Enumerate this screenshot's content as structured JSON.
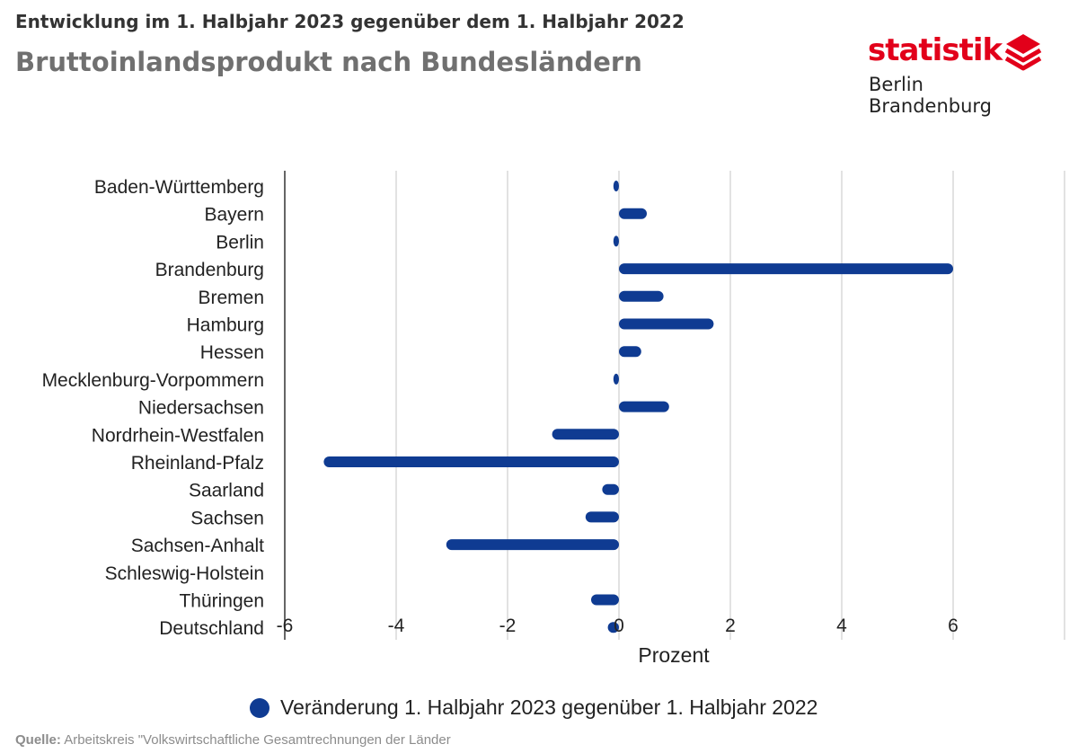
{
  "header": {
    "subtitle": "Entwicklung im 1. Halbjahr 2023 gegenüber dem 1. Halbjahr 2022",
    "title": "Bruttoinlandsprodukt nach Bundesländern"
  },
  "logo": {
    "word": "statistik",
    "sub": "Berlin Brandenburg",
    "accent_color": "#e2001a"
  },
  "colors": {
    "bar": "#0f3b92",
    "grid": "#d9d9d9",
    "axis": "#333333"
  },
  "chart_data": {
    "type": "bar",
    "orientation": "horizontal",
    "categories": [
      "Baden-Württemberg",
      "Bayern",
      "Berlin",
      "Brandenburg",
      "Bremen",
      "Hamburg",
      "Hessen",
      "Mecklenburg-Vorpommern",
      "Niedersachsen",
      "Nordrhein-Westfalen",
      "Rheinland-Pfalz",
      "Saarland",
      "Sachsen",
      "Sachsen-Anhalt",
      "Schleswig-Holstein",
      "Thüringen",
      "Deutschland"
    ],
    "series": [
      {
        "name": "Veränderung 1. Halbjahr 2023 gegenüber 1. Halbjahr 2022",
        "values": [
          -0.1,
          0.5,
          -0.1,
          6.0,
          0.8,
          1.7,
          0.4,
          -0.1,
          0.9,
          -1.2,
          -5.3,
          -0.3,
          -0.6,
          -3.1,
          0.0,
          -0.5,
          -0.2
        ]
      }
    ],
    "xlabel": "Prozent",
    "xlim": [
      -6,
      8
    ],
    "xticks": [
      -6,
      -4,
      -2,
      0,
      2,
      4,
      6
    ],
    "grid": true,
    "legend_position": "bottom"
  },
  "source": {
    "label": "Quelle:",
    "text": "Arbeitskreis \"Volkswirtschaftliche Gesamtrechnungen der Länder"
  }
}
